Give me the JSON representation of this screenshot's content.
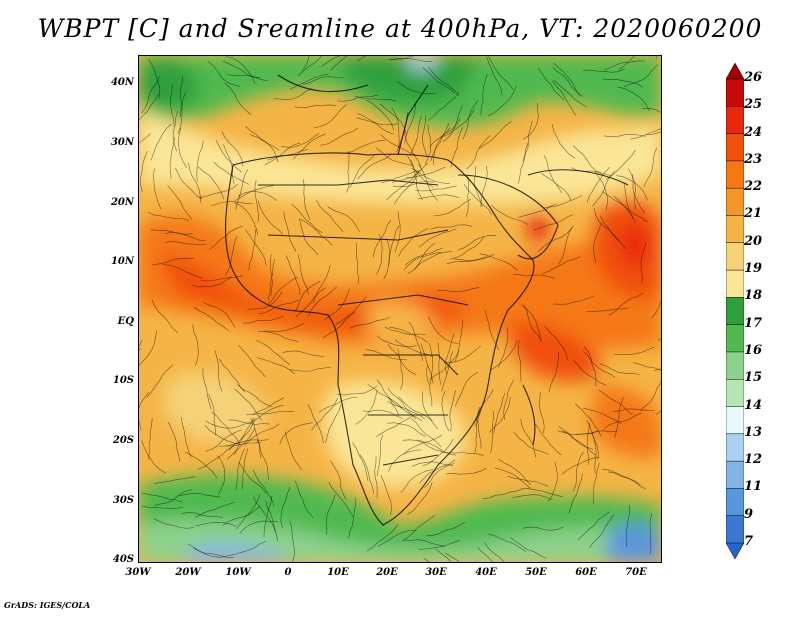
{
  "title": "WBPT [C] and Sreamline at 400hPa, VT: 2020060200",
  "credit": "GrADS: IGES/COLA",
  "lat_labels": [
    "40N",
    "30N",
    "20N",
    "10N",
    "EQ",
    "10S",
    "20S",
    "30S",
    "40S"
  ],
  "lon_labels": [
    "30W",
    "20W",
    "10W",
    "0",
    "10E",
    "20E",
    "30E",
    "40E",
    "50E",
    "60E",
    "70E"
  ],
  "colorbar": {
    "levels": [
      "26",
      "25",
      "24",
      "23",
      "22",
      "21",
      "20",
      "19",
      "18",
      "17",
      "16",
      "15",
      "14",
      "13",
      "12",
      "11",
      "9",
      "7"
    ],
    "colors": [
      "#a50000",
      "#c80a0a",
      "#e8280a",
      "#f0500a",
      "#f57814",
      "#f59628",
      "#f5b446",
      "#f5d278",
      "#fae696",
      "#2da03c",
      "#50b950",
      "#8cd28c",
      "#b4e6b4",
      "#e6fafa",
      "#aad2f0",
      "#82b4e6",
      "#5a96dc",
      "#3c78d2",
      "#2864c8"
    ]
  },
  "map": {
    "lon_range": [
      -30,
      75
    ],
    "lat_range": [
      -40,
      45
    ],
    "field": "wet-bulb potential temperature",
    "level": "400hPa",
    "overlay": "streamlines",
    "colors": {
      "frame": "#000000",
      "coastline": "#000000"
    }
  }
}
